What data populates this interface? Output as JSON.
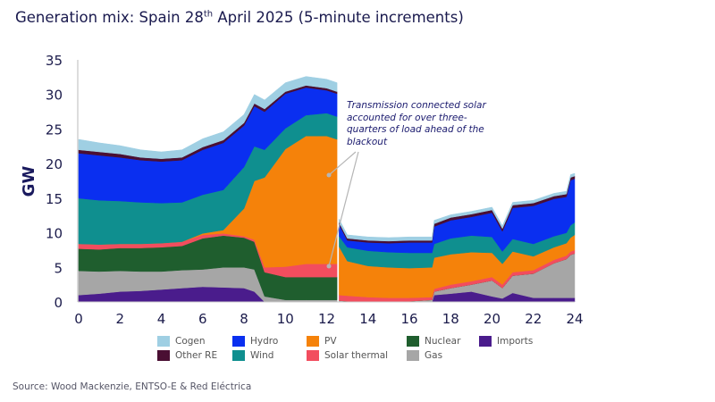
{
  "title_main": "Generation mix: Spain 28",
  "title_sup": "th",
  "title_rest": " April 2025 (5-minute increments)",
  "source": "Source: Wood Mackenzie, ENTSO-E & Red Eléctrica",
  "chart_data": {
    "type": "area",
    "stacked": true,
    "ylabel": "GW",
    "xlabel": "",
    "xlim": [
      0,
      24
    ],
    "ylim": [
      0,
      35
    ],
    "xticks": [
      0,
      2,
      4,
      6,
      8,
      10,
      12,
      14,
      16,
      18,
      20,
      22,
      24
    ],
    "yticks": [
      0,
      5,
      10,
      15,
      20,
      25,
      30,
      35
    ],
    "grid": false,
    "legend_position": "bottom",
    "annotation": "Transmission connected solar accounted for over three-quarters of load ahead of the blackout",
    "segments": [
      {
        "x": [
          0,
          1,
          2,
          3,
          4,
          5,
          6,
          7,
          8,
          8.5,
          9,
          10,
          11,
          12,
          12.5
        ],
        "series": {
          "Imports": [
            1.0,
            1.2,
            1.5,
            1.6,
            1.8,
            2.0,
            2.2,
            2.1,
            2.0,
            1.5,
            0.0,
            0.0,
            0.0,
            0.0,
            0.0
          ],
          "Gas": [
            3.5,
            3.2,
            3.0,
            2.8,
            2.6,
            2.6,
            2.5,
            2.9,
            3.0,
            3.2,
            0.8,
            0.3,
            0.3,
            0.3,
            0.3
          ],
          "Nuclear": [
            3.2,
            3.2,
            3.3,
            3.4,
            3.5,
            3.5,
            4.5,
            4.6,
            4.3,
            4.0,
            3.5,
            3.3,
            3.3,
            3.3,
            3.3
          ],
          "Solar thermal": [
            0.7,
            0.7,
            0.6,
            0.6,
            0.6,
            0.6,
            0.5,
            0.3,
            0.2,
            0.3,
            0.7,
            1.5,
            1.9,
            1.9,
            1.9
          ],
          "PV": [
            0.0,
            0.0,
            0.0,
            0.0,
            0.0,
            0.0,
            0.2,
            0.5,
            4.0,
            8.5,
            13.0,
            17.0,
            18.5,
            18.5,
            18.0
          ],
          "Wind": [
            6.6,
            6.4,
            6.2,
            6.0,
            5.8,
            5.7,
            5.6,
            5.8,
            6.0,
            5.0,
            4.0,
            3.0,
            3.0,
            3.3,
            3.3
          ],
          "Hydro": [
            6.5,
            6.5,
            6.3,
            6.1,
            6.0,
            6.1,
            6.5,
            6.8,
            6.0,
            5.8,
            5.5,
            5.0,
            4.0,
            3.3,
            3.3
          ],
          "Other RE": [
            0.5,
            0.5,
            0.5,
            0.4,
            0.4,
            0.4,
            0.4,
            0.4,
            0.4,
            0.4,
            0.4,
            0.3,
            0.3,
            0.3,
            0.3
          ],
          "Cogen": [
            1.5,
            1.3,
            1.2,
            1.1,
            1.0,
            1.1,
            1.2,
            1.2,
            1.2,
            1.3,
            1.3,
            1.3,
            1.3,
            1.3,
            1.3
          ]
        }
      },
      {
        "x": [
          12.6,
          13,
          14,
          15,
          16,
          17.1,
          17.2,
          18,
          19,
          20,
          20.5,
          21,
          22,
          23,
          23.6,
          23.8,
          24
        ],
        "series": {
          "Imports": [
            0.0,
            0.0,
            0.0,
            0.0,
            0.0,
            0.0,
            1.0,
            1.2,
            1.5,
            0.8,
            0.5,
            1.3,
            0.6,
            0.6,
            0.6,
            0.6,
            0.6
          ],
          "Gas": [
            0.2,
            0.1,
            0.0,
            0.0,
            0.1,
            0.3,
            0.5,
            0.8,
            1.0,
            2.3,
            1.5,
            2.5,
            3.5,
            5.0,
            5.6,
            6.2,
            6.4
          ],
          "Nuclear": [
            0,
            0,
            0,
            0,
            0,
            0,
            0,
            0,
            0,
            0,
            0,
            0,
            0,
            0,
            0,
            0,
            0
          ],
          "Solar thermal": [
            0.8,
            0.8,
            0.7,
            0.6,
            0.5,
            0.4,
            0.4,
            0.5,
            0.5,
            0.5,
            0.5,
            0.5,
            0.5,
            0.5,
            0.5,
            0.5,
            0.5
          ],
          "PV": [
            7.0,
            5.0,
            4.5,
            4.4,
            4.3,
            4.3,
            4.5,
            4.4,
            4.2,
            3.5,
            3.0,
            3.0,
            2.0,
            1.8,
            1.8,
            2.0,
            2.2
          ],
          "Wind": [
            1.5,
            2.0,
            2.2,
            2.2,
            2.2,
            2.1,
            2.0,
            2.3,
            2.4,
            2.3,
            1.8,
            1.8,
            1.8,
            1.6,
            1.5,
            1.8,
            1.8
          ],
          "Hydro": [
            1.7,
            1.0,
            1.2,
            1.3,
            1.5,
            1.5,
            2.5,
            2.6,
            2.7,
            3.5,
            2.9,
            4.5,
            5.5,
            5.4,
            5.2,
            6.5,
            6.3
          ],
          "Other RE": [
            0.3,
            0.3,
            0.3,
            0.3,
            0.3,
            0.3,
            0.4,
            0.4,
            0.4,
            0.4,
            0.4,
            0.4,
            0.4,
            0.4,
            0.4,
            0.4,
            0.4
          ],
          "Cogen": [
            0.5,
            0.5,
            0.5,
            0.5,
            0.5,
            0.5,
            0.5,
            0.4,
            0.4,
            0.4,
            0.4,
            0.4,
            0.4,
            0.4,
            0.4,
            0.4,
            0.4
          ]
        }
      }
    ],
    "stack_order": [
      "Imports",
      "Gas",
      "Nuclear",
      "Solar thermal",
      "PV",
      "Wind",
      "Hydro",
      "Other RE",
      "Cogen"
    ],
    "colors": {
      "Cogen": "#9fcfe3",
      "Hydro": "#0a2ff0",
      "PV": "#f5820a",
      "Nuclear": "#1f5e2e",
      "Imports": "#4a1c8c",
      "Other RE": "#4a0f33",
      "Wind": "#0f8f8f",
      "Solar thermal": "#f24d5e",
      "Gas": "#a6a6a6"
    },
    "legend": [
      "Cogen",
      "Hydro",
      "PV",
      "Nuclear",
      "Imports",
      "Other RE",
      "Wind",
      "Solar thermal",
      "Gas"
    ]
  }
}
